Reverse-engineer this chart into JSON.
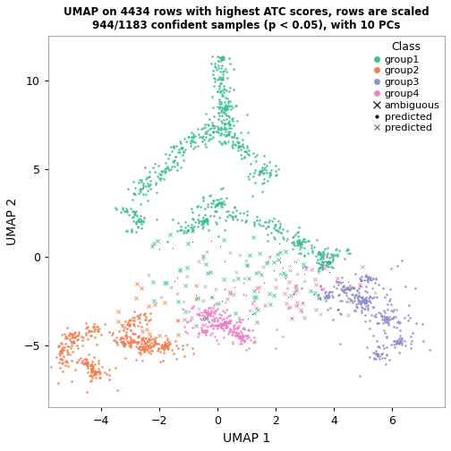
{
  "title_line1": "UMAP on 4434 rows with highest ATC scores, rows are scaled",
  "title_line2": "944/1183 confident samples (p < 0.05), with 10 PCs",
  "xlabel": "UMAP 1",
  "ylabel": "UMAP 2",
  "xlim": [
    -5.8,
    7.8
  ],
  "ylim": [
    -8.5,
    12.5
  ],
  "xticks": [
    -4,
    -2,
    0,
    2,
    4,
    6
  ],
  "yticks": [
    -5,
    0,
    5,
    10
  ],
  "colors": {
    "group1": "#3DBD98",
    "group2": "#F08050",
    "group3": "#9090CC",
    "group4": "#EE82C8",
    "ambiguous_g1": "#3DBD98",
    "ambiguous_g2": "#F08050",
    "ambiguous_g4": "#EE82C8"
  },
  "legend_title": "Class",
  "point_size": 3,
  "seed": 42
}
